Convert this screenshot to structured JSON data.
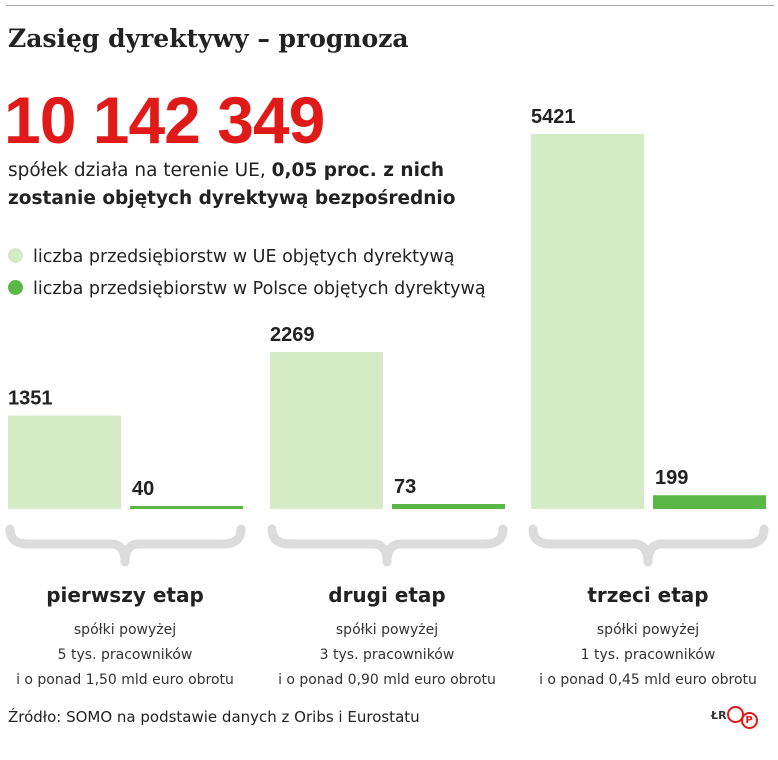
{
  "title": "Zasięg dyrektywy – prognoza",
  "headline": {
    "number": "10 142 349",
    "text_plain": "spółek działa na terenie UE, ",
    "text_bold": "0,05 proc. z nich zostanie objętych dyrektywą bezpośrednio"
  },
  "colors": {
    "accent": "#e01919",
    "eu": "#d5ebc6",
    "pl": "#5bb847",
    "brace": "#dcdcdc"
  },
  "chart_data": {
    "type": "bar",
    "categories": [
      "pierwszy etap",
      "drugi etap",
      "trzeci etap"
    ],
    "series": [
      {
        "name": "liczba przedsiębiorstw w UE objętych dyrektywą",
        "color": "#d5ebc6",
        "values": [
          1351,
          2269,
          5421
        ]
      },
      {
        "name": "liczba przedsiębiorstw w Polsce objętych dyrektywą",
        "color": "#5bb847",
        "values": [
          40,
          73,
          199
        ]
      }
    ],
    "value_labels": [
      [
        "1351",
        "40"
      ],
      [
        "2269",
        "73"
      ],
      [
        "5421",
        "199"
      ]
    ],
    "descriptions": [
      [
        "spółki powyżej",
        "5 tys. pracowników",
        "i o ponad 1,50 mld euro obrotu"
      ],
      [
        "spółki powyżej",
        "3 tys. pracowników",
        "i o ponad 0,90 mld euro obrotu"
      ],
      [
        "spółki powyżej",
        "1 tys. pracowników",
        "i o ponad 0,45 mld euro obrotu"
      ]
    ],
    "ylim": [
      0,
      5421
    ],
    "grid": false,
    "legend_position": "top-left"
  },
  "source": "Źródło: SOMO na podstawie danych z Oribs i Eurostatu",
  "credit": {
    "author": "ŁR",
    "logo": "P"
  }
}
